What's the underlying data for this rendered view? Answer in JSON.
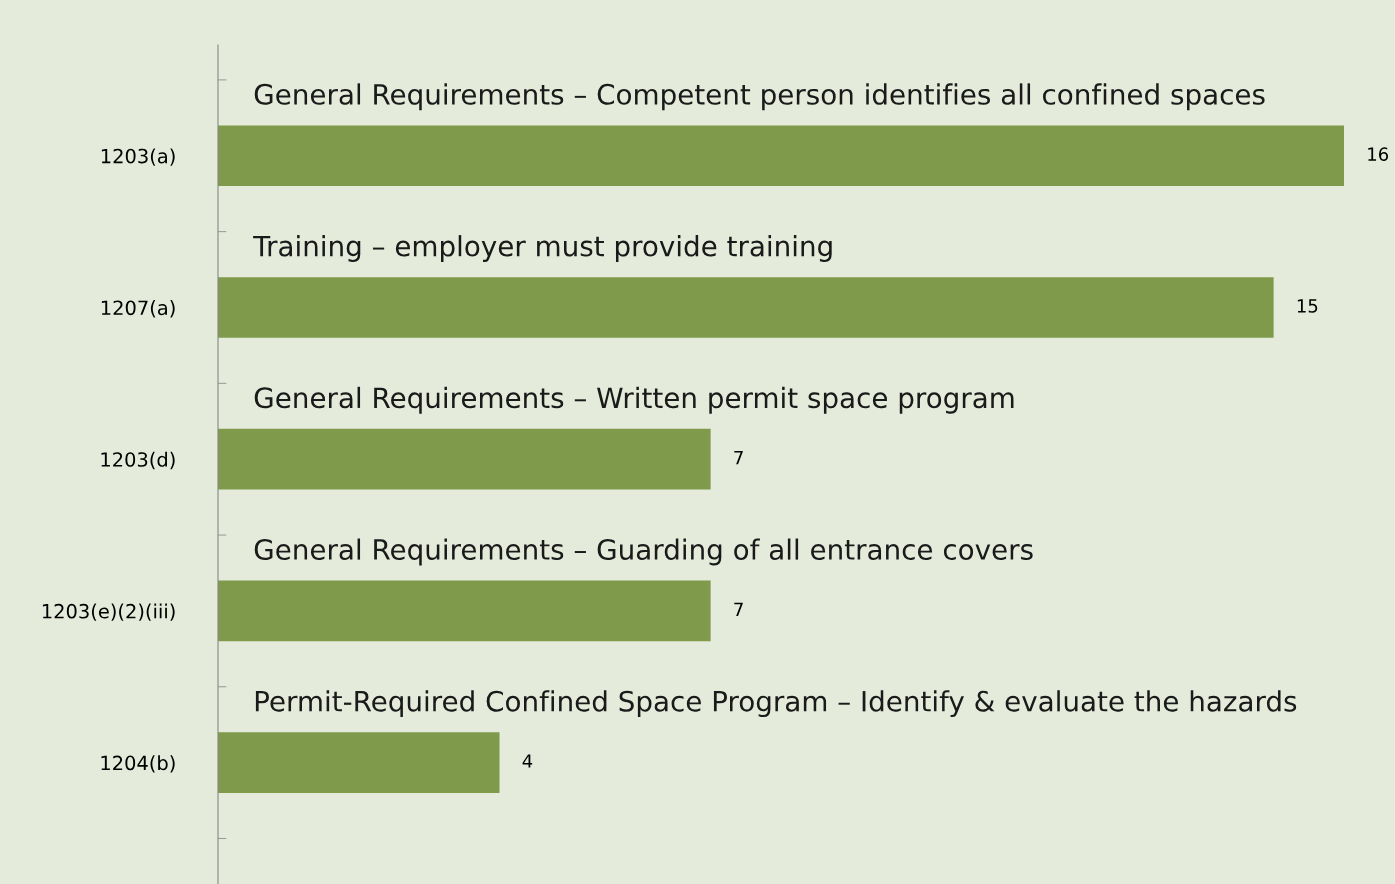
{
  "chart_data": {
    "type": "bar",
    "orientation": "horizontal",
    "categories": [
      "1203(a)",
      "1207(a)",
      "1203(d)",
      "1203(e)(2)(iii)",
      "1204(b)"
    ],
    "values": [
      16,
      15,
      7,
      7,
      4
    ],
    "color": "#7f9a4b",
    "data_labels": true,
    "tick_labels": "y",
    "grid": false,
    "legend": false,
    "annotations": [
      "General Requirements – Competent person identifies all confined spaces",
      "Training – employer must provide training",
      "General Requirements – Written permit space program",
      "General Requirements – Guarding of all entrance covers",
      "Permit-Required Confined Space Program – Identify & evaluate the hazards"
    ]
  }
}
